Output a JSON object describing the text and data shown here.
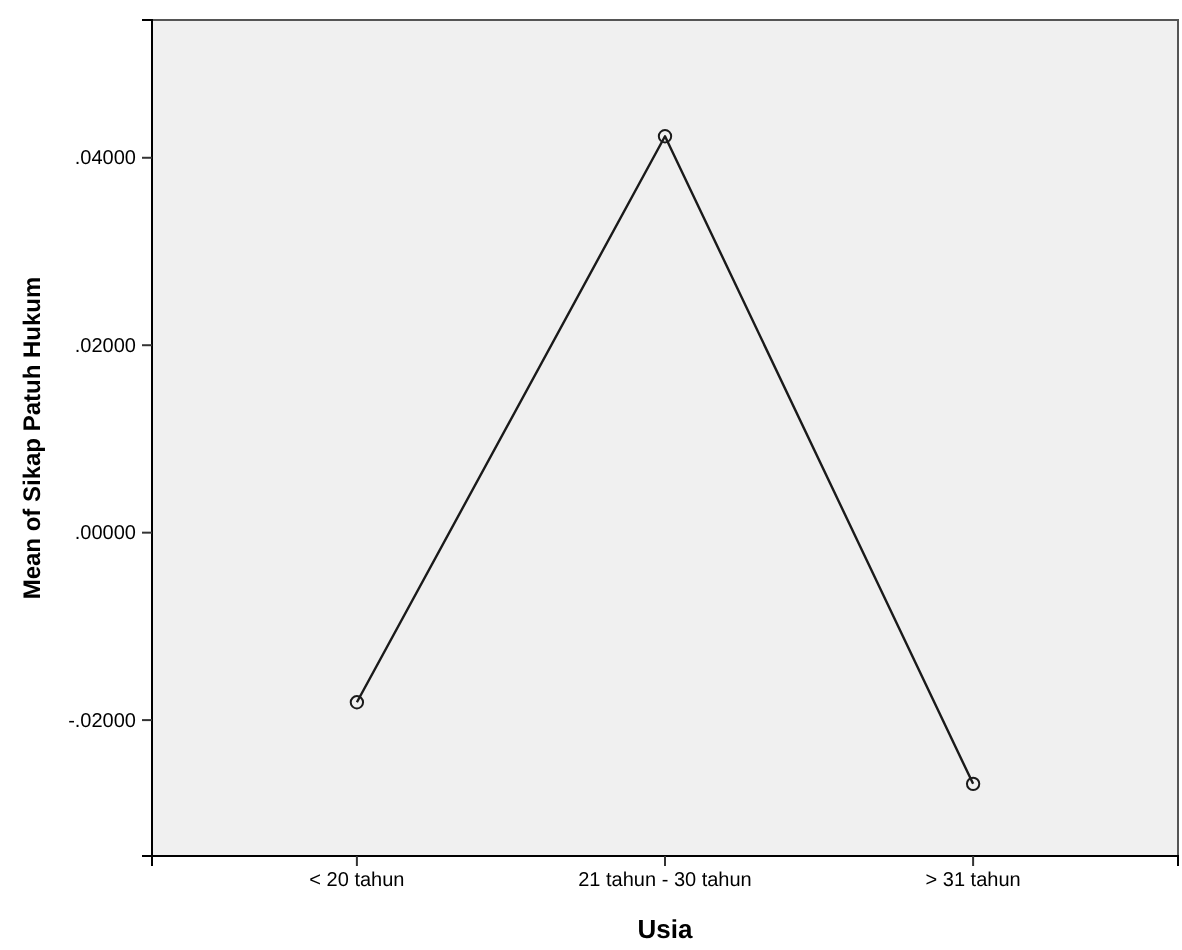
{
  "chart_data": {
    "type": "line",
    "xlabel": "Usia",
    "ylabel": "Mean of Sikap Patuh Hukum",
    "categories": [
      "< 20 tahun",
      "21 tahun - 30 tahun",
      "> 31 tahun"
    ],
    "series": [
      {
        "color": "#1a1a1a",
        "values": [
          -0.0181,
          0.0423,
          -0.0268
        ]
      }
    ],
    "ylim": [
      -0.0345,
      0.0547
    ],
    "yticks": [
      {
        "value": -0.02,
        "label": "-.02000"
      },
      {
        "value": 0,
        "label": ".00000"
      },
      {
        "value": 0.02,
        "label": ".02000"
      },
      {
        "value": 0.04,
        "label": ".04000"
      }
    ],
    "marker": "circle",
    "line_style": "solid",
    "grid": false
  }
}
